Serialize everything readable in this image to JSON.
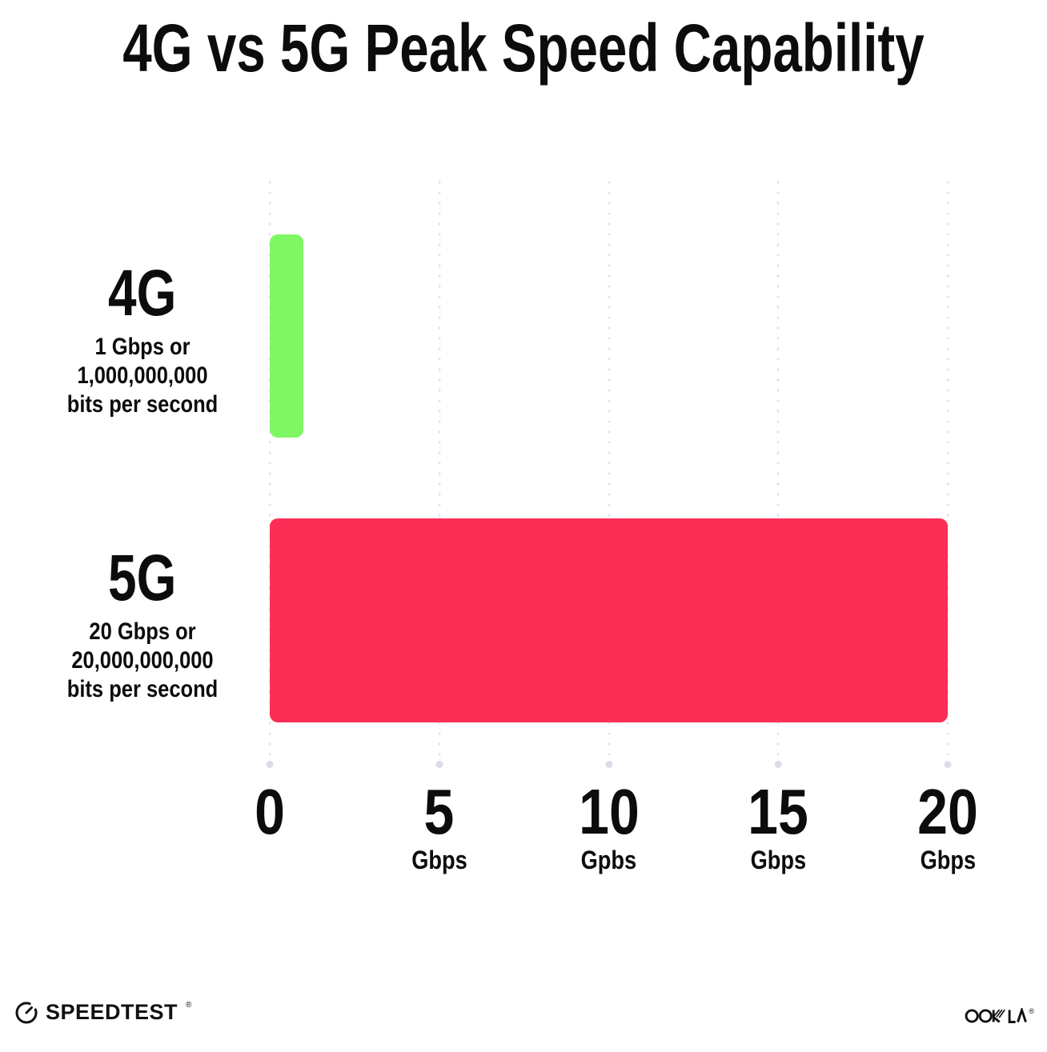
{
  "chart_data": {
    "type": "bar",
    "orientation": "horizontal",
    "title": "4G vs 5G Peak Speed Capability",
    "categories": [
      "4G",
      "5G"
    ],
    "values": [
      1,
      20
    ],
    "xlim": [
      0,
      20
    ],
    "xlabel": "",
    "ylabel": "",
    "grid": "vertical-dotted",
    "legend": "none",
    "rows": [
      {
        "name": "4G",
        "value": 1,
        "color": "#7FF765",
        "desc_lines": [
          "1 Gbps or",
          "1,000,000,000",
          "bits per second"
        ]
      },
      {
        "name": "5G",
        "value": 20,
        "color": "#FC2E56",
        "desc_lines": [
          "20 Gbps or",
          "20,000,000,000",
          "bits per second"
        ]
      }
    ],
    "x_ticks": [
      {
        "value": "0",
        "unit": ""
      },
      {
        "value": "5",
        "unit": "Gbps"
      },
      {
        "value": "10",
        "unit": "Gpbs"
      },
      {
        "value": "15",
        "unit": "Gbps"
      },
      {
        "value": "20",
        "unit": "Gbps"
      }
    ]
  },
  "footer": {
    "speedtest_label": "SPEEDTEST",
    "speedtest_trademark": "®",
    "ookla_label": "OOKLA",
    "ookla_trademark": "®"
  }
}
